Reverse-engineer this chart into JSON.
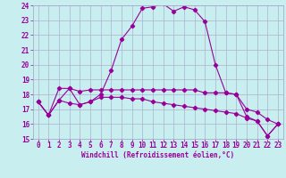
{
  "xlabel": "Windchill (Refroidissement éolien,°C)",
  "bg_color": "#c8eef0",
  "line_color": "#990099",
  "grid_color": "#aaaacc",
  "xlim": [
    -0.5,
    23.5
  ],
  "ylim": [
    15,
    24
  ],
  "yticks": [
    15,
    16,
    17,
    18,
    19,
    20,
    21,
    22,
    23,
    24
  ],
  "xticks": [
    0,
    1,
    2,
    3,
    4,
    5,
    6,
    7,
    8,
    9,
    10,
    11,
    12,
    13,
    14,
    15,
    16,
    17,
    18,
    19,
    20,
    21,
    22,
    23
  ],
  "series1_x": [
    0,
    1,
    2,
    3,
    4,
    5,
    6,
    7,
    8,
    9,
    10,
    11,
    12,
    13,
    14,
    15,
    16,
    17,
    18,
    19,
    20,
    21,
    22,
    23
  ],
  "series1_y": [
    17.5,
    16.6,
    17.6,
    18.4,
    17.3,
    17.5,
    18.0,
    19.6,
    21.7,
    22.6,
    23.8,
    23.9,
    24.1,
    23.6,
    23.9,
    23.7,
    22.9,
    20.0,
    18.1,
    18.0,
    16.5,
    16.2,
    15.2,
    16.0
  ],
  "series2_x": [
    0,
    1,
    2,
    3,
    4,
    5,
    6,
    7,
    8,
    9,
    10,
    11,
    12,
    13,
    14,
    15,
    16,
    17,
    18,
    19,
    20,
    21,
    22,
    23
  ],
  "series2_y": [
    17.5,
    16.6,
    18.4,
    18.4,
    18.2,
    18.3,
    18.3,
    18.3,
    18.3,
    18.3,
    18.3,
    18.3,
    18.3,
    18.3,
    18.3,
    18.3,
    18.1,
    18.1,
    18.1,
    18.0,
    17.0,
    16.8,
    16.3,
    16.0
  ],
  "series3_x": [
    0,
    1,
    2,
    3,
    4,
    5,
    6,
    7,
    8,
    9,
    10,
    11,
    12,
    13,
    14,
    15,
    16,
    17,
    18,
    19,
    20,
    21,
    22,
    23
  ],
  "series3_y": [
    17.5,
    16.6,
    17.6,
    17.4,
    17.3,
    17.5,
    17.8,
    17.8,
    17.8,
    17.7,
    17.7,
    17.5,
    17.4,
    17.3,
    17.2,
    17.1,
    17.0,
    16.9,
    16.8,
    16.7,
    16.4,
    16.2,
    15.2,
    16.0
  ],
  "tick_fontsize": 5.5,
  "xlabel_fontsize": 5.5
}
